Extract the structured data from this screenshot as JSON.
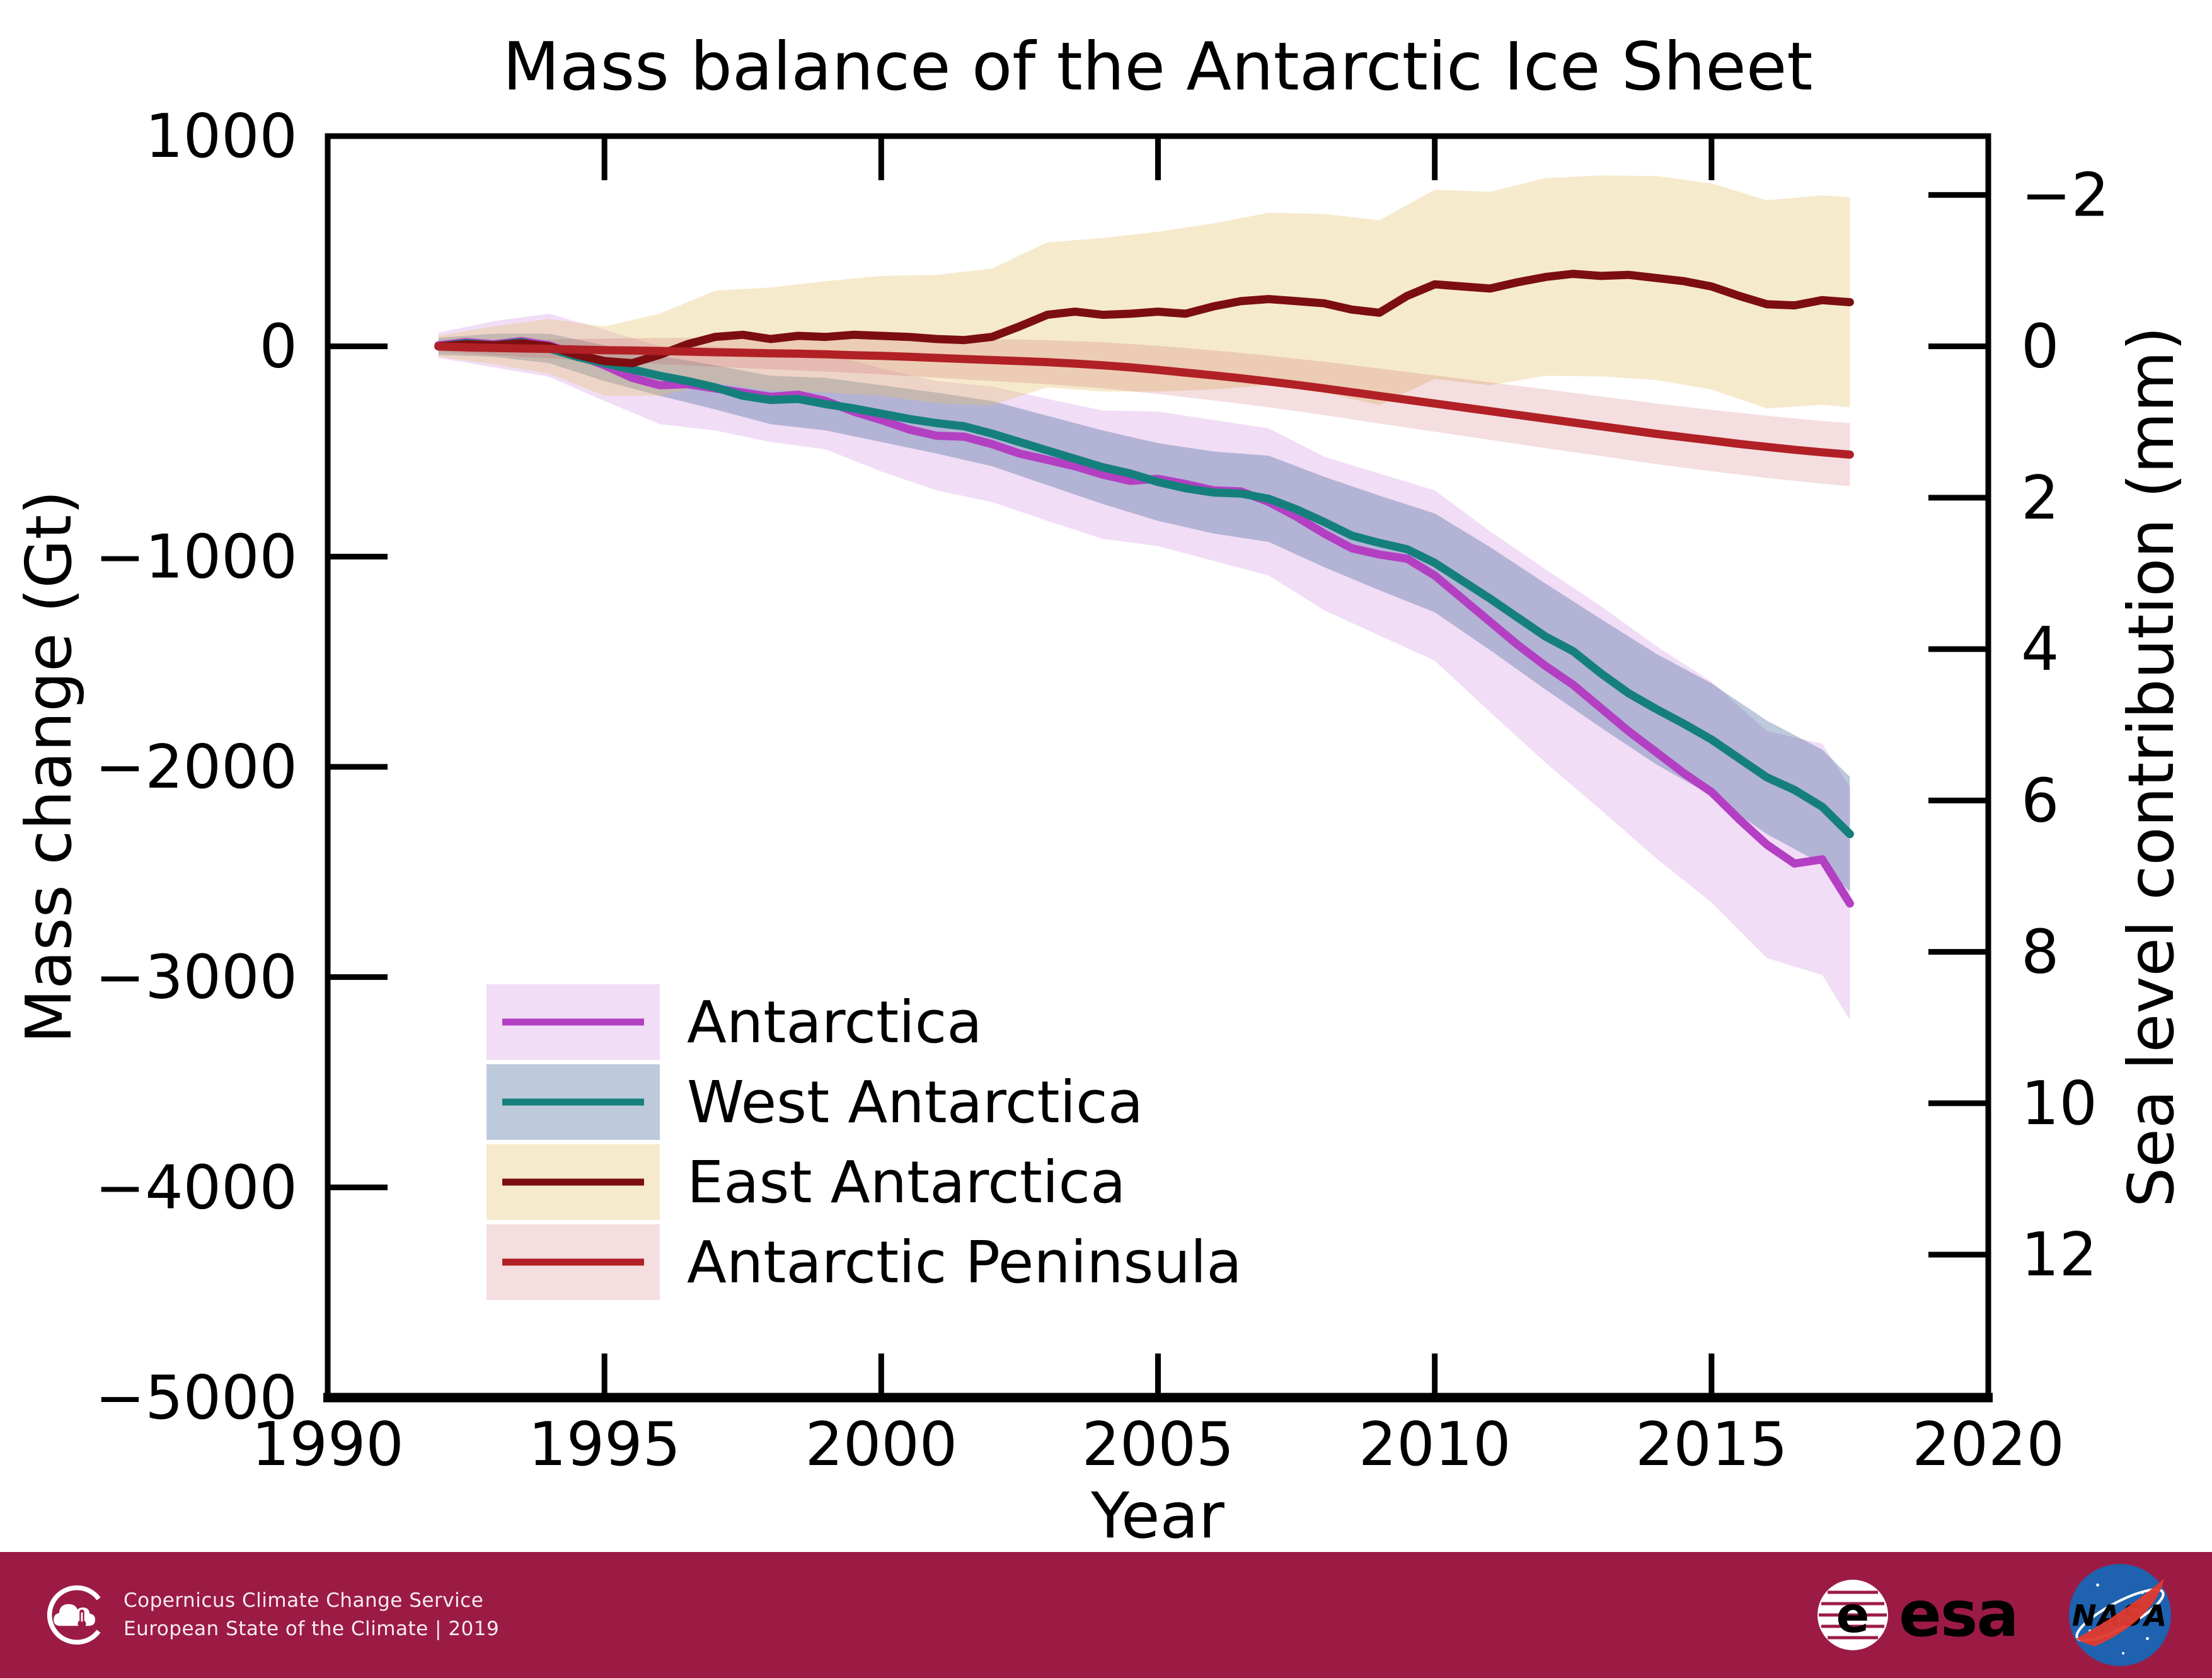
{
  "page": {
    "background": "#ffffff"
  },
  "chart_data": {
    "type": "line",
    "title": "Mass balance of the Antarctic Ice Sheet",
    "xlabel": "Year",
    "ylabel_left": "Mass change (Gt)",
    "ylabel_right": "Sea level contribution (mm)",
    "xlim": [
      1990,
      2020
    ],
    "ylim_left_gt": [
      -5000,
      1000
    ],
    "xticks": [
      1990,
      1995,
      2000,
      2005,
      2010,
      2015,
      2020
    ],
    "yticks_left_gt": [
      1000,
      0,
      -1000,
      -2000,
      -3000,
      -4000,
      -5000
    ],
    "yticks_right_mm": [
      -2,
      0,
      2,
      4,
      6,
      8,
      10,
      12
    ],
    "gt_per_mm": -360,
    "grid": false,
    "legend_position": "lower-left-inside",
    "years": [
      1992,
      1992.5,
      1993,
      1993.5,
      1994,
      1994.5,
      1995,
      1995.5,
      1996,
      1996.5,
      1997,
      1997.5,
      1998,
      1998.5,
      1999,
      1999.5,
      2000,
      2000.5,
      2001,
      2001.5,
      2002,
      2002.5,
      2003,
      2003.5,
      2004,
      2004.5,
      2005,
      2005.5,
      2006,
      2006.5,
      2007,
      2007.5,
      2008,
      2008.5,
      2009,
      2009.5,
      2010,
      2010.5,
      2011,
      2011.5,
      2012,
      2012.5,
      2013,
      2013.5,
      2014,
      2014.5,
      2015,
      2015.5,
      2016,
      2016.5,
      2017,
      2017.5
    ],
    "band_years": [
      1992,
      1993,
      1994,
      1995,
      1996,
      1997,
      1998,
      1999,
      2000,
      2001,
      2002,
      2003,
      2004,
      2005,
      2006,
      2007,
      2008,
      2009,
      2010,
      2011,
      2012,
      2013,
      2014,
      2015,
      2016,
      2017,
      2017.5
    ],
    "series": [
      {
        "name": "Antarctica",
        "line_color": "#b33fc3",
        "band_color": "rgba(186,85,211,0.20)",
        "values": [
          5,
          20,
          10,
          25,
          5,
          -40,
          -90,
          -150,
          -185,
          -180,
          -200,
          -220,
          -240,
          -230,
          -260,
          -310,
          -350,
          -395,
          -425,
          -430,
          -465,
          -510,
          -540,
          -570,
          -610,
          -640,
          -630,
          -655,
          -685,
          -690,
          -740,
          -810,
          -890,
          -960,
          -990,
          -1010,
          -1090,
          -1200,
          -1310,
          -1420,
          -1520,
          -1610,
          -1720,
          -1830,
          -1930,
          -2030,
          -2120,
          -2250,
          -2370,
          -2460,
          -2440,
          -2650
        ],
        "band_half_widths": [
          60,
          110,
          150,
          170,
          185,
          200,
          215,
          230,
          245,
          260,
          275,
          290,
          305,
          320,
          335,
          350,
          365,
          385,
          405,
          430,
          460,
          485,
          505,
          525,
          540,
          550,
          555
        ]
      },
      {
        "name": "West Antarctica",
        "line_color": "#15807b",
        "band_color": "rgba(60,100,150,0.34)",
        "values": [
          0,
          15,
          5,
          20,
          -10,
          -50,
          -80,
          -110,
          -140,
          -165,
          -195,
          -235,
          -255,
          -250,
          -275,
          -295,
          -320,
          -345,
          -365,
          -380,
          -415,
          -455,
          -495,
          -535,
          -575,
          -605,
          -645,
          -675,
          -695,
          -700,
          -725,
          -775,
          -835,
          -900,
          -935,
          -965,
          -1030,
          -1115,
          -1200,
          -1290,
          -1380,
          -1450,
          -1555,
          -1650,
          -1725,
          -1795,
          -1870,
          -1960,
          -2050,
          -2110,
          -2190,
          -2320
        ],
        "band_half_widths": [
          40,
          55,
          70,
          85,
          95,
          105,
          115,
          125,
          135,
          145,
          155,
          165,
          175,
          185,
          195,
          205,
          215,
          225,
          235,
          245,
          252,
          258,
          263,
          267,
          270,
          272,
          273
        ]
      },
      {
        "name": "East Antarctica",
        "line_color": "#7c0e12",
        "band_color": "rgba(230,195,110,0.35)",
        "values": [
          0,
          10,
          5,
          15,
          0,
          -40,
          -70,
          -80,
          -40,
          10,
          45,
          55,
          35,
          50,
          45,
          55,
          50,
          45,
          35,
          30,
          45,
          95,
          150,
          165,
          150,
          155,
          165,
          155,
          190,
          215,
          225,
          215,
          205,
          175,
          160,
          240,
          295,
          285,
          275,
          305,
          330,
          345,
          335,
          340,
          325,
          310,
          285,
          240,
          200,
          195,
          220,
          210
        ],
        "band_half_widths": [
          50,
          90,
          130,
          165,
          195,
          220,
          245,
          265,
          285,
          305,
          325,
          345,
          365,
          380,
          395,
          410,
          425,
          440,
          450,
          460,
          470,
          478,
          485,
          490,
          495,
          498,
          500
        ]
      },
      {
        "name": "Antarctic Peninsula",
        "line_color": "#b12025",
        "band_color": "rgba(190,60,70,0.17)",
        "values": [
          0,
          -5,
          -8,
          -10,
          -12,
          -15,
          -18,
          -20,
          -22,
          -25,
          -28,
          -30,
          -33,
          -35,
          -38,
          -42,
          -45,
          -50,
          -55,
          -60,
          -65,
          -70,
          -75,
          -82,
          -90,
          -100,
          -112,
          -125,
          -138,
          -152,
          -167,
          -183,
          -200,
          -218,
          -236,
          -254,
          -272,
          -290,
          -308,
          -326,
          -344,
          -362,
          -380,
          -398,
          -416,
          -432,
          -448,
          -464,
          -478,
          -492,
          -504,
          -515
        ],
        "band_half_widths": [
          25,
          35,
          45,
          55,
          62,
          69,
          76,
          82,
          88,
          94,
          100,
          105,
          110,
          115,
          119,
          123,
          127,
          131,
          134,
          137,
          140,
          142,
          144,
          146,
          148,
          149,
          150
        ]
      }
    ]
  },
  "footer": {
    "background": "#9c1b45",
    "line1": "Copernicus Climate Change Service",
    "line2": "European State of the Climate | 2019",
    "esa_label": "esa",
    "esa_globe_letter": "e",
    "nasa_label": "NASA"
  }
}
